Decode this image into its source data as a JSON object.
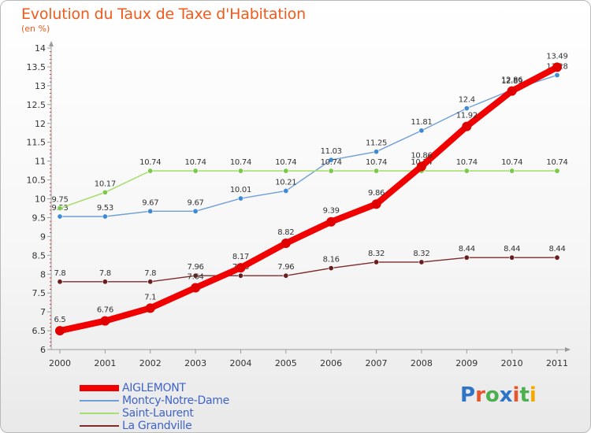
{
  "title": "Evolution du Taux de Taxe d'Habitation",
  "unit_label": "(en %)",
  "logo": {
    "text": "Proxiti",
    "letter_colors": [
      "#2e75c8",
      "#e4572e",
      "#4caf50",
      "#2e75c8",
      "#e4572e",
      "#4caf50",
      "#f2a900"
    ]
  },
  "chart_data": {
    "type": "line",
    "x": [
      "2000",
      "2001",
      "2002",
      "2003",
      "2004",
      "2005",
      "2006",
      "2007",
      "2008",
      "2009",
      "2010",
      "2011"
    ],
    "ylim": [
      6,
      14
    ],
    "yticks": [
      "6",
      "6.5",
      "7",
      "7.5",
      "8",
      "8.5",
      "9",
      "9.5",
      "10",
      "10.5",
      "11",
      "11.5",
      "12",
      "12.5",
      "13",
      "13.5",
      "14"
    ],
    "grid": false,
    "legend_position": "bottom-left",
    "series": [
      {
        "name": "Montcy-Notre-Dame",
        "color": "#6f9fd8",
        "marker": "#3f8bd3",
        "linewidth": 1.4,
        "values": [
          9.53,
          9.53,
          9.67,
          9.67,
          10.01,
          10.21,
          11.03,
          11.25,
          11.81,
          12.4,
          12.89,
          13.28
        ],
        "labels": [
          "9.53",
          "9.53",
          "9.67",
          "9.67",
          "10.01",
          "10.21",
          "11.03",
          "11.25",
          "11.81",
          "12.4",
          "12.89",
          "13.28"
        ]
      },
      {
        "name": "Saint-Laurent",
        "color": "#a9df72",
        "marker": "#7cc84b",
        "linewidth": 1.6,
        "values": [
          9.75,
          10.17,
          10.74,
          10.74,
          10.74,
          10.74,
          10.74,
          10.74,
          10.74,
          10.74,
          10.74,
          10.74
        ],
        "labels": [
          "9.75",
          "10.17",
          "10.74",
          "10.74",
          "10.74",
          "10.74",
          "10.74",
          "10.74",
          "10.74",
          "10.74",
          "10.74",
          "10.74"
        ]
      },
      {
        "name": "La Grandville",
        "color": "#7d2b2b",
        "marker": "#6a1f1f",
        "linewidth": 1.4,
        "values": [
          7.8,
          7.8,
          7.8,
          7.96,
          7.96,
          7.96,
          8.16,
          8.32,
          8.32,
          8.44,
          8.44,
          8.44
        ],
        "labels": [
          "7.8",
          "7.8",
          "7.8",
          "7.96",
          "7.96",
          "7.96",
          "8.16",
          "8.32",
          "8.32",
          "8.44",
          "8.44",
          "8.44"
        ]
      },
      {
        "name": "AIGLEMONT",
        "color": "#f00000",
        "marker": "#e00000",
        "linewidth": 8,
        "values": [
          6.5,
          6.76,
          7.1,
          7.64,
          8.17,
          8.82,
          9.39,
          9.86,
          10.86,
          11.92,
          12.86,
          13.49
        ],
        "labels": [
          "6.5",
          "6.76",
          "7.1",
          "7.64",
          "8.17",
          "8.82",
          "9.39",
          "9.86",
          "10.86",
          "11.92",
          "12.86",
          "13.49"
        ]
      }
    ]
  },
  "legend": [
    {
      "label": "AIGLEMONT",
      "color": "#f00000",
      "thickness": 8
    },
    {
      "label": "Montcy-Notre-Dame",
      "color": "#6f9fd8",
      "thickness": 2
    },
    {
      "label": "Saint-Laurent",
      "color": "#a9df72",
      "thickness": 2
    },
    {
      "label": "La Grandville",
      "color": "#7d2b2b",
      "thickness": 2
    }
  ]
}
